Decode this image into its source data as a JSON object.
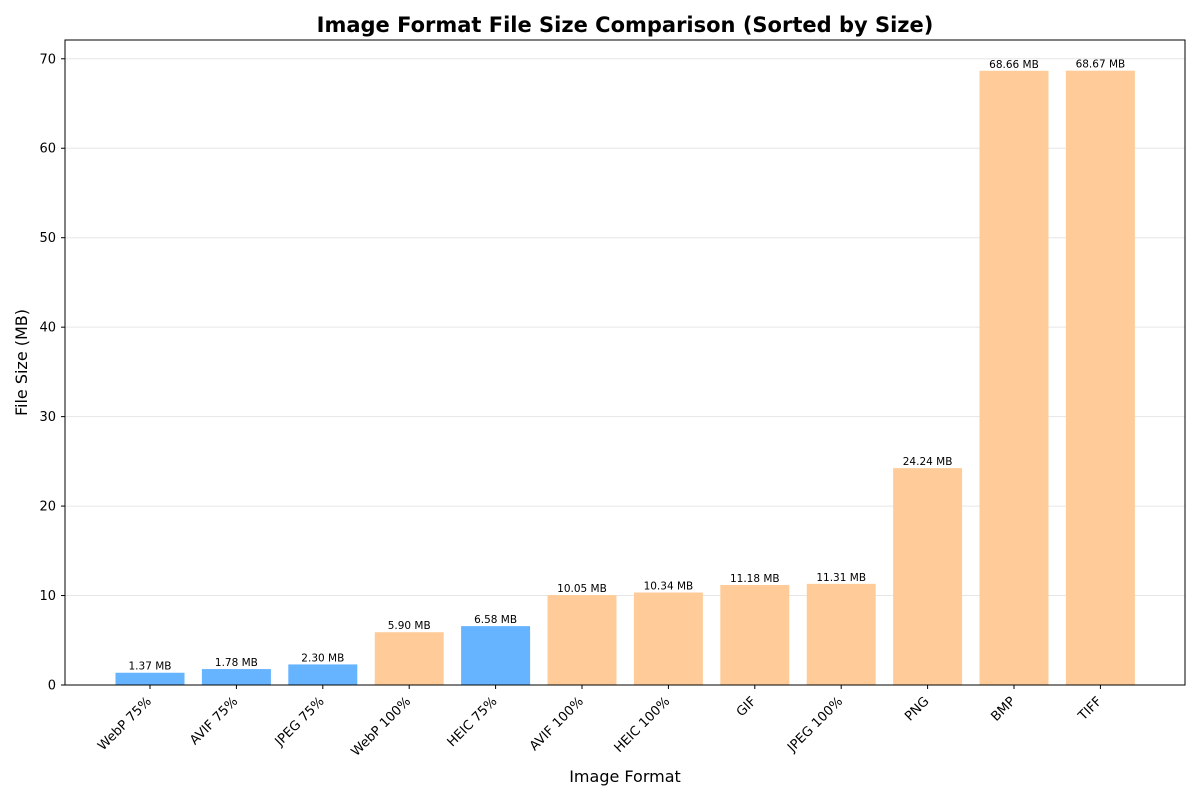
{
  "chart_data": {
    "type": "bar",
    "title": "Image Format File Size Comparison (Sorted by Size)",
    "xlabel": "Image Format",
    "ylabel": "File Size (MB)",
    "ylim": [
      0,
      72.1
    ],
    "yticks": [
      0,
      10,
      20,
      30,
      40,
      50,
      60,
      70
    ],
    "grid": "horizontal",
    "categories": [
      "WebP 75%",
      "AVIF 75%",
      "JPEG 75%",
      "WebP 100%",
      "HEIC 75%",
      "AVIF 100%",
      "HEIC 100%",
      "GIF",
      "JPEG 100%",
      "PNG",
      "BMP",
      "TIFF"
    ],
    "values": [
      1.37,
      1.78,
      2.3,
      5.9,
      6.58,
      10.05,
      10.34,
      11.18,
      11.31,
      24.24,
      68.66,
      68.67
    ],
    "value_labels": [
      "1.37 MB",
      "1.78 MB",
      "2.30 MB",
      "5.90 MB",
      "6.58 MB",
      "10.05 MB",
      "10.34 MB",
      "11.18 MB",
      "11.31 MB",
      "24.24 MB",
      "68.66 MB",
      "68.67 MB"
    ],
    "bar_colors": [
      "#66b3ff",
      "#66b3ff",
      "#66b3ff",
      "#ffcc99",
      "#66b3ff",
      "#ffcc99",
      "#ffcc99",
      "#ffcc99",
      "#ffcc99",
      "#ffcc99",
      "#ffcc99",
      "#ffcc99"
    ]
  }
}
